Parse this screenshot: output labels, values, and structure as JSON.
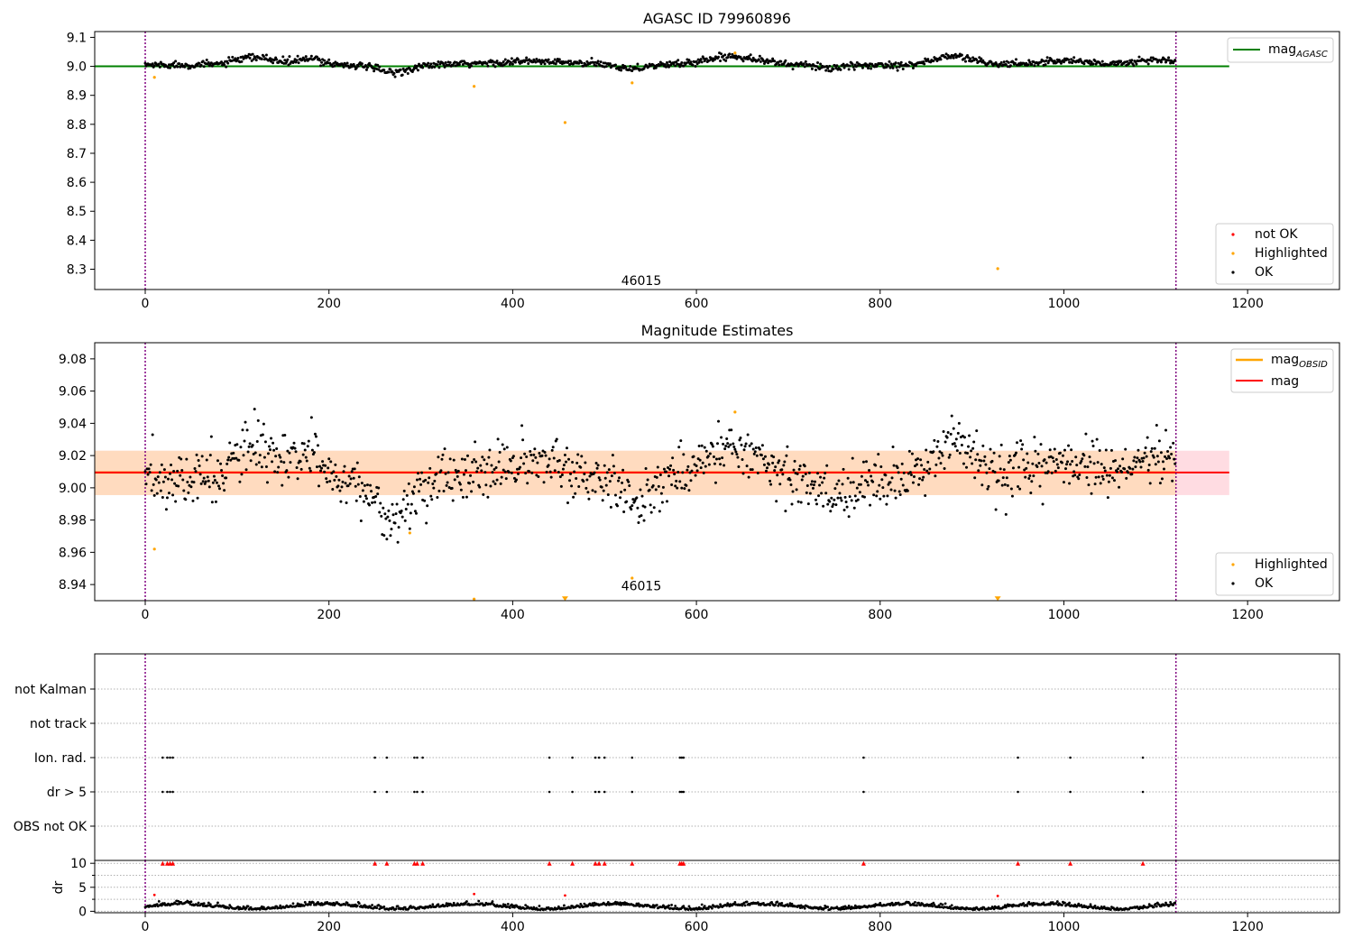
{
  "chart_data": [
    {
      "id": "top",
      "type": "scatter",
      "title": "AGASC ID 79960896",
      "xlim": [
        -55,
        1300
      ],
      "ylim": [
        8.23,
        9.12
      ],
      "x_ticks": [
        0,
        200,
        400,
        600,
        800,
        1000,
        1200
      ],
      "x_tick_labels": [
        "0",
        "200",
        "400",
        "600",
        "800",
        "1000",
        "1200"
      ],
      "y_ticks": [
        8.3,
        8.4,
        8.5,
        8.6,
        8.7,
        8.8,
        8.9,
        9.0,
        9.1
      ],
      "y_tick_labels": [
        "8.3",
        "8.4",
        "8.5",
        "8.6",
        "8.7",
        "8.8",
        "8.9",
        "9.0",
        "9.1"
      ],
      "hline": {
        "y": 9.0,
        "x_range": [
          -55,
          1180
        ],
        "color": "#008000",
        "label": "mag",
        "label_sub": "AGASC"
      },
      "vlines": [
        0,
        1122
      ],
      "vline_color": "#800080",
      "annotation": {
        "text": "46015",
        "x": 540,
        "y": 8.255
      },
      "legend_lines_position": "upper right",
      "legend_points_position": "lower right",
      "legend_points": [
        {
          "label": "not OK",
          "color": "#ff0000"
        },
        {
          "label": "Highlighted",
          "color": "#ffa500"
        },
        {
          "label": "OK",
          "color": "#000000"
        }
      ],
      "series_ok_model": {
        "n": 1122,
        "base": 9.005,
        "bumps": [
          [
            120,
            30,
            0.025
          ],
          [
            180,
            20,
            0.02
          ],
          [
            270,
            25,
            -0.025
          ],
          [
            420,
            60,
            0.012
          ],
          [
            530,
            20,
            -0.012
          ],
          [
            640,
            40,
            0.03
          ],
          [
            750,
            25,
            -0.01
          ],
          [
            880,
            30,
            0.03
          ],
          [
            1000,
            40,
            0.015
          ],
          [
            1100,
            30,
            0.018
          ]
        ],
        "noise": 0.006
      },
      "highlighted": [
        {
          "x": 10,
          "y": 8.962
        },
        {
          "x": 358,
          "y": 8.931
        },
        {
          "x": 457,
          "y": 8.806
        },
        {
          "x": 530,
          "y": 8.943
        },
        {
          "x": 642,
          "y": 9.046
        },
        {
          "x": 928,
          "y": 8.302
        }
      ]
    },
    {
      "id": "middle",
      "type": "scatter",
      "title": "Magnitude Estimates",
      "xlim": [
        -55,
        1300
      ],
      "ylim": [
        8.93,
        9.09
      ],
      "x_ticks": [
        0,
        200,
        400,
        600,
        800,
        1000,
        1200
      ],
      "x_tick_labels": [
        "0",
        "200",
        "400",
        "600",
        "800",
        "1000",
        "1200"
      ],
      "y_ticks": [
        8.94,
        8.96,
        8.98,
        9.0,
        9.02,
        9.04,
        9.06,
        9.08
      ],
      "y_tick_labels": [
        "8.94",
        "8.96",
        "8.98",
        "9.00",
        "9.02",
        "9.04",
        "9.06",
        "9.08"
      ],
      "mag_line": {
        "y": 9.0095,
        "x_range": [
          -55,
          1180
        ],
        "color": "#ff0000",
        "label": "mag"
      },
      "mag_band": {
        "y_low": 8.9955,
        "y_high": 9.023,
        "x_range": [
          -55,
          1180
        ],
        "color": "#ffc0cb"
      },
      "obsid_line": {
        "y": 9.0095,
        "x_range": [
          -55,
          1122
        ],
        "color": "#ffa500",
        "label": "mag",
        "label_sub": "OBSID"
      },
      "obsid_band": {
        "y_low": 8.9955,
        "y_high": 9.023,
        "x_range": [
          -55,
          1122
        ],
        "color": "#ffdab9"
      },
      "vlines": [
        0,
        1122
      ],
      "vline_color": "#800080",
      "annotation": {
        "text": "46015",
        "x": 540,
        "y": 8.9315
      },
      "legend_lines_position": "upper right",
      "legend_points_position": "lower right",
      "legend_points": [
        {
          "label": "Highlighted",
          "color": "#ffa500"
        },
        {
          "label": "OK",
          "color": "#000000"
        }
      ],
      "series_ok_model": {
        "n": 1122,
        "base": 9.005,
        "bumps": [
          [
            120,
            30,
            0.02
          ],
          [
            180,
            20,
            0.015
          ],
          [
            270,
            25,
            -0.025
          ],
          [
            420,
            60,
            0.01
          ],
          [
            530,
            20,
            -0.015
          ],
          [
            640,
            40,
            0.022
          ],
          [
            750,
            25,
            -0.01
          ],
          [
            880,
            30,
            0.025
          ],
          [
            1000,
            40,
            0.012
          ],
          [
            1100,
            30,
            0.015
          ]
        ],
        "noise": 0.008
      },
      "highlighted": [
        {
          "x": 10,
          "y": 8.962
        },
        {
          "x": 288,
          "y": 8.972
        },
        {
          "x": 358,
          "y": 8.931
        },
        {
          "x": 530,
          "y": 8.944
        },
        {
          "x": 642,
          "y": 9.047
        }
      ],
      "highlighted_offscale": [
        {
          "x": 457,
          "y": 8.931
        },
        {
          "x": 928,
          "y": 8.931
        }
      ]
    },
    {
      "id": "flags",
      "type": "scatter",
      "xlim": [
        -55,
        1300
      ],
      "categories": [
        "not Kalman",
        "not track",
        "Ion. rad.",
        "dr > 5",
        "OBS not OK"
      ],
      "vlines": [
        0,
        1122
      ],
      "vline_color": "#800080",
      "flag_points": {
        "Ion. rad.": [
          19,
          24,
          27,
          30,
          250,
          263,
          293,
          296,
          302,
          440,
          465,
          490,
          494,
          500,
          530,
          582,
          584,
          586,
          782,
          950,
          1007,
          1086
        ],
        "dr > 5": [
          19,
          24,
          27,
          30,
          250,
          263,
          293,
          296,
          302,
          440,
          465,
          490,
          494,
          500,
          530,
          582,
          584,
          586,
          782,
          950,
          1007,
          1086
        ]
      }
    },
    {
      "id": "dr",
      "type": "scatter",
      "ylabel": "dr",
      "xlim": [
        -55,
        1300
      ],
      "ylim": [
        -0.3,
        10.6
      ],
      "x_ticks": [
        0,
        200,
        400,
        600,
        800,
        1000,
        1200
      ],
      "x_tick_labels": [
        "0",
        "200",
        "400",
        "600",
        "800",
        "1000",
        "1200"
      ],
      "y_ticks": [
        0,
        5,
        10
      ],
      "y_tick_labels": [
        "0",
        "5",
        "10"
      ],
      "vlines": [
        0,
        1122
      ],
      "vline_color": "#800080",
      "clipped_markers_y": 9.9,
      "clipped_markers_x": [
        19,
        24,
        27,
        30,
        250,
        263,
        293,
        296,
        302,
        440,
        465,
        490,
        494,
        500,
        530,
        582,
        584,
        586,
        782,
        950,
        1007,
        1086
      ],
      "red_points": [
        {
          "x": 10,
          "y": 3.4
        },
        {
          "x": 358,
          "y": 3.6
        },
        {
          "x": 457,
          "y": 3.3
        },
        {
          "x": 928,
          "y": 3.2
        }
      ],
      "series_ok_model": {
        "n": 1122,
        "base": 0.8,
        "noise": 0.35
      }
    }
  ]
}
